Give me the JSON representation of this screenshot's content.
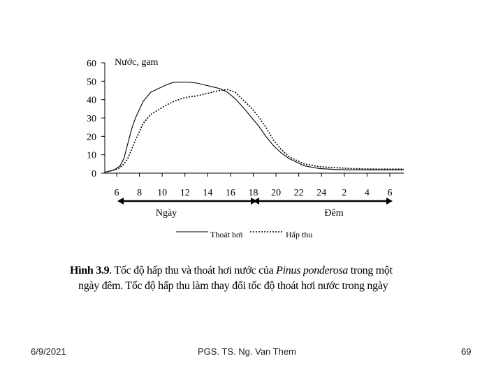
{
  "chart_data": {
    "type": "line",
    "ylabel": "Nước, gam",
    "ylim": [
      0,
      60
    ],
    "yticks": [
      0,
      10,
      20,
      30,
      40,
      50,
      60
    ],
    "x_tick_labels": [
      "6",
      "8",
      "10",
      "12",
      "14",
      "16",
      "18",
      "20",
      "22",
      "24",
      "2",
      "4",
      "6"
    ],
    "x": [
      0,
      2,
      3,
      4,
      5,
      6,
      7,
      8,
      10,
      12,
      14,
      16,
      18,
      20,
      22,
      24,
      26,
      28,
      30,
      32,
      34,
      36,
      38,
      40,
      42,
      44,
      46,
      48,
      52,
      56,
      60,
      64,
      68,
      72,
      76,
      78
    ],
    "series": [
      {
        "name": "Thoát hơi",
        "style": "solid",
        "values": [
          0.5,
          1.5,
          2.5,
          4,
          8,
          16,
          24,
          30,
          39,
          44,
          46,
          48,
          49.5,
          49.5,
          49.5,
          49,
          48,
          47,
          46,
          44,
          40.5,
          36,
          31,
          26,
          20,
          15,
          11,
          8,
          4,
          2.5,
          2,
          1.8,
          1.8,
          1.8,
          1.8,
          1.8
        ]
      },
      {
        "name": "Hấp thu",
        "style": "dotted",
        "values": [
          0.5,
          1.5,
          2,
          3,
          5,
          8,
          13,
          18,
          27,
          32,
          34.5,
          37,
          39,
          40.5,
          41.5,
          42,
          43,
          44,
          45,
          45.5,
          44,
          40,
          36,
          31,
          25,
          18,
          13,
          9,
          5,
          3.5,
          3,
          2.5,
          2.3,
          2.2,
          2.2,
          2.2
        ]
      }
    ],
    "period_labels": [
      "Ngày",
      "Đêm"
    ],
    "grid": false,
    "legend_position": "bottom"
  },
  "caption": {
    "figure_number": "Hình 3.9",
    "text_part1": ". Tốc độ hấp thu và thoát hơi nước của ",
    "species": "Pinus ponderosa",
    "text_part2": " trong một",
    "line2": "ngày đêm. Tốc độ hấp thu làm thay đổi tốc độ thoát hơi nước trong ngày"
  },
  "footer": {
    "date": "6/9/2021",
    "author": "PGS. TS. Ng. Van Them",
    "page": "69"
  }
}
